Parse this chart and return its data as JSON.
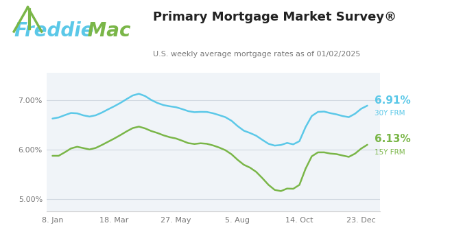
{
  "title": "Primary Mortgage Market Survey®",
  "subtitle": "U.S. weekly average mortgage rates as of 01/02/2025",
  "title_color": "#222222",
  "subtitle_color": "#777777",
  "bg_color": "#ffffff",
  "header_bg_color": "#f5f5f5",
  "plot_bg_color": "#f0f4f8",
  "line_30y_color": "#5bc8e8",
  "line_15y_color": "#7ab648",
  "freddie_color": "#5bc8e8",
  "mac_color": "#7ab648",
  "label_30y": "6.91%",
  "label_15y": "6.13%",
  "label_30y_sub": "30Y FRM",
  "label_15y_sub": "15Y FRM",
  "yticks": [
    5.0,
    6.0,
    7.0
  ],
  "ylim": [
    4.75,
    7.55
  ],
  "xtick_labels": [
    "8. Jan",
    "18. Mar",
    "27. May",
    "5. Aug",
    "14. Oct",
    "23. Dec"
  ],
  "xtick_pos": [
    1,
    11,
    21,
    31,
    41,
    51
  ],
  "rate_30y": [
    6.62,
    6.64,
    6.69,
    6.77,
    6.74,
    6.69,
    6.64,
    6.69,
    6.74,
    6.82,
    6.87,
    6.94,
    7.02,
    7.1,
    7.17,
    7.09,
    6.99,
    6.94,
    6.89,
    6.87,
    6.87,
    6.82,
    6.77,
    6.74,
    6.77,
    6.77,
    6.74,
    6.69,
    6.67,
    6.6,
    6.47,
    6.35,
    6.35,
    6.29,
    6.2,
    6.09,
    6.08,
    6.05,
    6.2,
    6.09,
    6.01,
    6.54,
    6.72,
    6.78,
    6.79,
    6.72,
    6.72,
    6.69,
    6.6,
    6.72,
    6.84,
    6.91
  ],
  "rate_15y": [
    5.89,
    5.82,
    5.96,
    6.03,
    6.09,
    6.03,
    5.97,
    6.03,
    6.09,
    6.16,
    6.22,
    6.29,
    6.37,
    6.44,
    6.5,
    6.43,
    6.36,
    6.35,
    6.28,
    6.24,
    6.24,
    6.18,
    6.12,
    6.09,
    6.15,
    6.12,
    6.09,
    6.04,
    6.0,
    5.92,
    5.79,
    5.66,
    5.66,
    5.56,
    5.43,
    5.27,
    5.17,
    5.1,
    5.27,
    5.21,
    5.1,
    5.71,
    5.92,
    5.96,
    5.96,
    5.9,
    5.92,
    5.9,
    5.79,
    5.92,
    6.02,
    6.13
  ],
  "gridline_color": "#d0d8e0",
  "spine_color": "#cccccc"
}
